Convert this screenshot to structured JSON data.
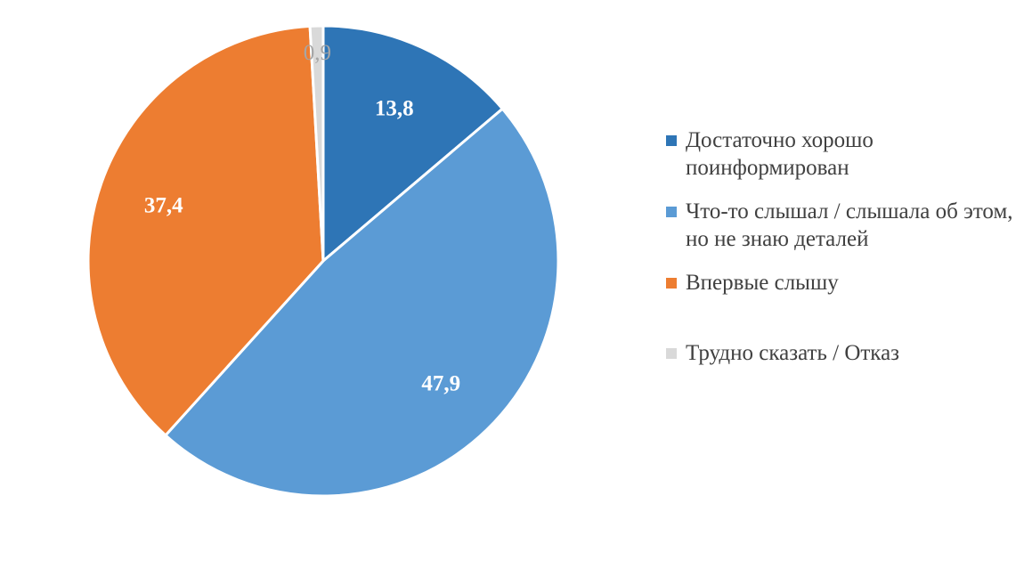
{
  "chart_data": {
    "type": "pie",
    "categories": [
      "Достаточно хорошо поинформирован",
      "Что-то слышал / слышала об этом, но не знаю деталей",
      "Впервые слышу",
      "Трудно сказать / Отказ"
    ],
    "values": [
      13.8,
      47.9,
      37.4,
      0.9
    ],
    "value_labels": [
      "13,8",
      "47,9",
      "37,4",
      "0,9"
    ],
    "colors": [
      "#2E75B6",
      "#5B9BD5",
      "#ED7D31",
      "#D9D9D9"
    ],
    "label_colors": [
      "#ffffff",
      "#ffffff",
      "#ffffff",
      "#A6A6A6"
    ],
    "start_angle_deg": 0,
    "direction": "clockwise",
    "legend_position": "right"
  },
  "legend": {
    "items": [
      {
        "label": "Достаточно хорошо поинформирован",
        "color": "#2E75B6"
      },
      {
        "label": "Что-то слышал / слышала об этом, но не знаю деталей",
        "color": "#5B9BD5"
      },
      {
        "label": "Впервые слышу",
        "color": "#ED7D31"
      },
      {
        "label": "Трудно сказать / Отказ",
        "color": "#D9D9D9"
      }
    ]
  }
}
